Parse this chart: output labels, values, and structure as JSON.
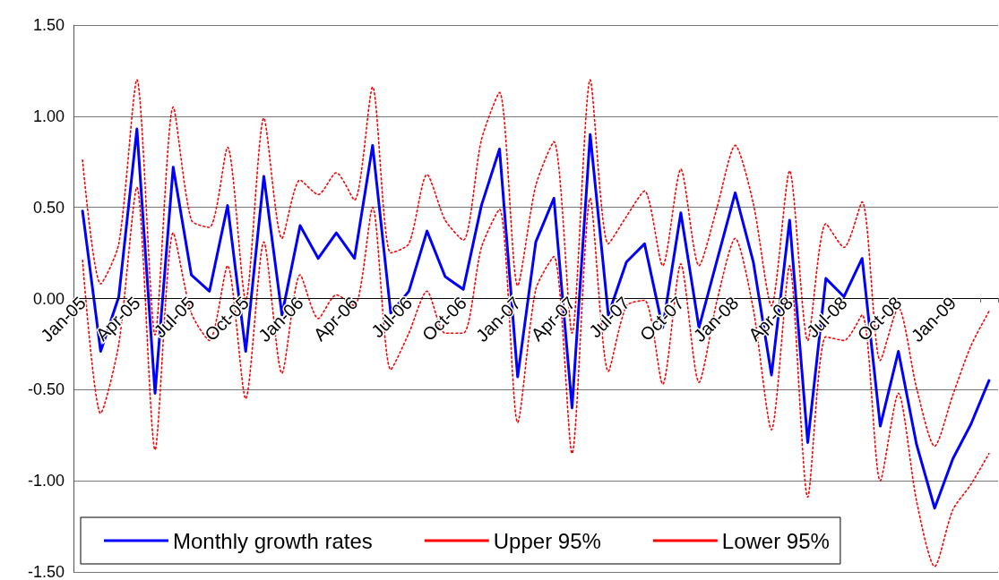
{
  "chart_data": {
    "type": "line",
    "categories": [
      "Jan-05",
      null,
      null,
      "Apr-05",
      null,
      null,
      "Jul-05",
      null,
      null,
      "Oct-05",
      null,
      null,
      "Jan-06",
      null,
      null,
      "Apr-06",
      null,
      null,
      "Jul-06",
      null,
      null,
      "Oct-06",
      null,
      null,
      "Jan-07",
      null,
      null,
      "Apr-07",
      null,
      null,
      "Jul-07",
      null,
      null,
      "Oct-07",
      null,
      null,
      "Jan-08",
      null,
      null,
      "Apr-08",
      null,
      null,
      "Jul-08",
      null,
      null,
      "Oct-08",
      null,
      null,
      "Jan-09",
      null,
      null
    ],
    "series": [
      {
        "name": "Monthly growth rates",
        "color": "#0000ff",
        "line_style": "solid",
        "values": [
          0.48,
          -0.29,
          0.01,
          0.93,
          -0.52,
          0.72,
          0.13,
          0.04,
          0.51,
          -0.29,
          0.67,
          -0.09,
          0.4,
          0.22,
          0.36,
          0.22,
          0.84,
          -0.08,
          0.04,
          0.37,
          0.12,
          0.05,
          0.51,
          0.82,
          -0.43,
          0.31,
          0.55,
          -0.6,
          0.9,
          -0.09,
          0.2,
          0.3,
          -0.16,
          0.47,
          -0.16,
          0.21,
          0.58,
          0.2,
          -0.42,
          0.43,
          -0.79,
          0.11,
          0.01,
          0.22,
          -0.7,
          -0.29,
          -0.8,
          -1.15,
          -0.88,
          -0.69,
          -0.45
        ]
      },
      {
        "name": "Upper 95%",
        "color": "#ff0000",
        "line_style": "dotted",
        "values": [
          0.76,
          0.08,
          0.3,
          1.2,
          -0.2,
          1.05,
          0.43,
          0.39,
          0.83,
          -0.01,
          0.99,
          0.33,
          0.65,
          0.57,
          0.69,
          0.54,
          1.16,
          0.25,
          0.3,
          0.68,
          0.43,
          0.32,
          0.87,
          1.13,
          0.07,
          0.62,
          0.86,
          -0.19,
          1.2,
          0.3,
          0.45,
          0.59,
          0.18,
          0.71,
          0.18,
          0.5,
          0.84,
          0.52,
          -0.04,
          0.7,
          -0.23,
          0.41,
          0.28,
          0.53,
          -0.34,
          -0.05,
          -0.49,
          -0.81,
          -0.53,
          -0.26,
          -0.07
        ]
      },
      {
        "name": "Lower 95%",
        "color": "#ff0000",
        "line_style": "dotted",
        "values": [
          0.21,
          -0.63,
          -0.25,
          0.61,
          -0.83,
          0.36,
          -0.08,
          -0.23,
          0.18,
          -0.55,
          0.31,
          -0.41,
          0.13,
          -0.11,
          0.02,
          -0.04,
          0.5,
          -0.39,
          -0.19,
          0.04,
          -0.19,
          -0.19,
          0.28,
          0.49,
          -0.68,
          0.05,
          0.23,
          -0.85,
          0.55,
          -0.4,
          -0.04,
          -0.01,
          -0.47,
          0.19,
          -0.46,
          -0.01,
          0.33,
          -0.06,
          -0.72,
          0.18,
          -1.09,
          -0.21,
          -0.23,
          -0.09,
          -1.0,
          -0.52,
          -1.11,
          -1.47,
          -1.16,
          -1.02,
          -0.85
        ]
      }
    ],
    "ylim": [
      -1.5,
      1.5
    ],
    "yticks": [
      {
        "value": -1.5,
        "label": "-1.50"
      },
      {
        "value": -1,
        "label": "-1.00"
      },
      {
        "value": -0.5,
        "label": "-0.50"
      },
      {
        "value": 0,
        "label": "0.00"
      },
      {
        "value": 0.5,
        "label": "0.50"
      },
      {
        "value": 1,
        "label": "1.00"
      },
      {
        "value": 1.5,
        "label": "1.50"
      }
    ],
    "grid": "y",
    "legend": "bottom",
    "marker": "none"
  }
}
